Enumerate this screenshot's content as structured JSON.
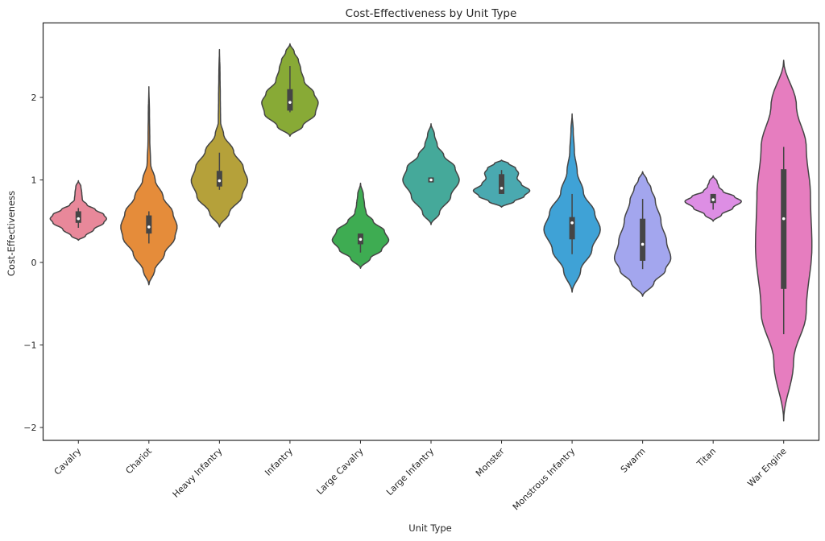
{
  "chart_data": {
    "type": "violin",
    "title": "Cost-Effectiveness by Unit Type",
    "xlabel": "Unit Type",
    "ylabel": "Cost-Effectiveness",
    "ylim": [
      -2.1,
      2.95
    ],
    "yticks": [
      -2,
      -1,
      0,
      1,
      2
    ],
    "ytick_labels": [
      "−2",
      "−1",
      "0",
      "1",
      "2"
    ],
    "grid": false,
    "legend": "none",
    "categories": [
      "Cavalry",
      "Chariot",
      "Heavy Infantry",
      "Infantry",
      "Large Cavalry",
      "Large Infantry",
      "Monster",
      "Monstrous Infantry",
      "Swarm",
      "Titan",
      "War Engine"
    ],
    "series": [
      {
        "name": "Cavalry",
        "color": "#e8889a",
        "min": 0.27,
        "max": 0.99,
        "q1": 0.48,
        "median": 0.53,
        "q3": 0.62,
        "whisker_low": 0.42,
        "whisker_high": 0.66,
        "profile": [
          [
            0.27,
            0
          ],
          [
            0.32,
            0.25
          ],
          [
            0.4,
            0.55
          ],
          [
            0.48,
            0.9
          ],
          [
            0.53,
            1.0
          ],
          [
            0.58,
            0.9
          ],
          [
            0.64,
            0.6
          ],
          [
            0.7,
            0.3
          ],
          [
            0.76,
            0.14
          ],
          [
            0.84,
            0.12
          ],
          [
            0.92,
            0.09
          ],
          [
            0.99,
            0
          ]
        ]
      },
      {
        "name": "Chariot",
        "color": "#e58c3a",
        "min": -0.27,
        "max": 2.13,
        "q1": 0.35,
        "median": 0.43,
        "q3": 0.57,
        "whisker_low": 0.23,
        "whisker_high": 0.62,
        "profile": [
          [
            -0.27,
            0
          ],
          [
            -0.1,
            0.2
          ],
          [
            0.1,
            0.55
          ],
          [
            0.3,
            0.92
          ],
          [
            0.43,
            1.0
          ],
          [
            0.6,
            0.85
          ],
          [
            0.8,
            0.5
          ],
          [
            1.0,
            0.22
          ],
          [
            1.2,
            0.06
          ],
          [
            1.5,
            0.03
          ],
          [
            1.8,
            0.02
          ],
          [
            2.13,
            0
          ]
        ]
      },
      {
        "name": "Heavy Infantry",
        "color": "#b5a13a",
        "min": 0.43,
        "max": 2.58,
        "q1": 0.92,
        "median": 0.99,
        "q3": 1.11,
        "whisker_low": 0.88,
        "whisker_high": 1.33,
        "profile": [
          [
            0.43,
            0
          ],
          [
            0.6,
            0.35
          ],
          [
            0.8,
            0.8
          ],
          [
            0.99,
            1.0
          ],
          [
            1.15,
            0.85
          ],
          [
            1.35,
            0.5
          ],
          [
            1.55,
            0.15
          ],
          [
            1.7,
            0.04
          ],
          [
            2.0,
            0.03
          ],
          [
            2.3,
            0.02
          ],
          [
            2.58,
            0
          ]
        ]
      },
      {
        "name": "Infantry",
        "color": "#88aa36",
        "min": 1.53,
        "max": 2.65,
        "q1": 1.84,
        "median": 1.94,
        "q3": 2.1,
        "whisker_low": 1.82,
        "whisker_high": 2.38,
        "profile": [
          [
            1.53,
            0
          ],
          [
            1.65,
            0.45
          ],
          [
            1.8,
            0.9
          ],
          [
            1.94,
            1.0
          ],
          [
            2.05,
            0.85
          ],
          [
            2.2,
            0.5
          ],
          [
            2.35,
            0.38
          ],
          [
            2.45,
            0.3
          ],
          [
            2.55,
            0.15
          ],
          [
            2.65,
            0
          ]
        ]
      },
      {
        "name": "Large Cavalry",
        "color": "#3eac52",
        "min": -0.07,
        "max": 0.96,
        "q1": 0.22,
        "median": 0.28,
        "q3": 0.35,
        "whisker_low": 0.12,
        "whisker_high": 0.35,
        "profile": [
          [
            -0.07,
            0
          ],
          [
            0.05,
            0.35
          ],
          [
            0.15,
            0.75
          ],
          [
            0.27,
            1.0
          ],
          [
            0.38,
            0.85
          ],
          [
            0.5,
            0.45
          ],
          [
            0.6,
            0.2
          ],
          [
            0.7,
            0.14
          ],
          [
            0.82,
            0.1
          ],
          [
            0.96,
            0
          ]
        ]
      },
      {
        "name": "Large Infantry",
        "color": "#45a99a",
        "min": 0.46,
        "max": 1.68,
        "q1": 0.97,
        "median": 1.0,
        "q3": 1.03,
        "whisker_low": 0.97,
        "whisker_high": 1.03,
        "profile": [
          [
            0.46,
            0
          ],
          [
            0.6,
            0.3
          ],
          [
            0.8,
            0.7
          ],
          [
            1.0,
            1.0
          ],
          [
            1.15,
            0.85
          ],
          [
            1.3,
            0.45
          ],
          [
            1.42,
            0.22
          ],
          [
            1.55,
            0.12
          ],
          [
            1.68,
            0
          ]
        ]
      },
      {
        "name": "Monster",
        "color": "#4aa9b0",
        "min": 0.67,
        "max": 1.24,
        "q1": 0.83,
        "median": 0.9,
        "q3": 1.07,
        "whisker_low": 0.83,
        "whisker_high": 1.12,
        "profile": [
          [
            0.67,
            0
          ],
          [
            0.74,
            0.45
          ],
          [
            0.8,
            0.8
          ],
          [
            0.87,
            1.0
          ],
          [
            0.95,
            0.7
          ],
          [
            1.02,
            0.55
          ],
          [
            1.08,
            0.6
          ],
          [
            1.14,
            0.5
          ],
          [
            1.2,
            0.25
          ],
          [
            1.24,
            0
          ]
        ]
      },
      {
        "name": "Monstrous Infantry",
        "color": "#3fa2d6",
        "min": -0.36,
        "max": 1.8,
        "q1": 0.28,
        "median": 0.48,
        "q3": 0.55,
        "whisker_low": 0.1,
        "whisker_high": 0.83,
        "profile": [
          [
            -0.36,
            0
          ],
          [
            -0.1,
            0.3
          ],
          [
            0.15,
            0.7
          ],
          [
            0.4,
            1.0
          ],
          [
            0.6,
            0.8
          ],
          [
            0.85,
            0.4
          ],
          [
            1.1,
            0.18
          ],
          [
            1.35,
            0.08
          ],
          [
            1.6,
            0.04
          ],
          [
            1.8,
            0
          ]
        ]
      },
      {
        "name": "Swarm",
        "color": "#a3a6ee",
        "min": -0.41,
        "max": 1.1,
        "q1": 0.02,
        "median": 0.22,
        "q3": 0.53,
        "whisker_low": -0.08,
        "whisker_high": 0.77,
        "profile": [
          [
            -0.41,
            0
          ],
          [
            -0.25,
            0.4
          ],
          [
            -0.1,
            0.8
          ],
          [
            0.05,
            1.0
          ],
          [
            0.25,
            0.85
          ],
          [
            0.5,
            0.65
          ],
          [
            0.75,
            0.45
          ],
          [
            0.9,
            0.3
          ],
          [
            1.0,
            0.15
          ],
          [
            1.1,
            0
          ]
        ]
      },
      {
        "name": "Titan",
        "color": "#dd8ee4",
        "min": 0.5,
        "max": 1.05,
        "q1": 0.72,
        "median": 0.76,
        "q3": 0.83,
        "whisker_low": 0.64,
        "whisker_high": 0.83,
        "profile": [
          [
            0.5,
            0
          ],
          [
            0.58,
            0.3
          ],
          [
            0.66,
            0.7
          ],
          [
            0.74,
            1.0
          ],
          [
            0.8,
            0.75
          ],
          [
            0.86,
            0.35
          ],
          [
            0.92,
            0.2
          ],
          [
            0.98,
            0.14
          ],
          [
            1.05,
            0
          ]
        ]
      },
      {
        "name": "War Engine",
        "color": "#e67dbf",
        "min": -1.92,
        "max": 2.45,
        "q1": -0.32,
        "median": 0.53,
        "q3": 1.13,
        "whisker_low": -0.87,
        "whisker_high": 1.4,
        "profile": [
          [
            -1.92,
            0
          ],
          [
            -1.2,
            0.35
          ],
          [
            -0.6,
            0.8
          ],
          [
            0.2,
            1.0
          ],
          [
            0.8,
            0.95
          ],
          [
            1.4,
            0.8
          ],
          [
            1.9,
            0.45
          ],
          [
            2.45,
            0
          ]
        ]
      }
    ]
  }
}
